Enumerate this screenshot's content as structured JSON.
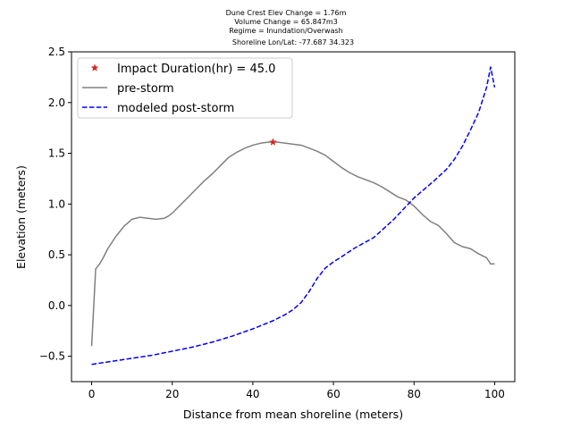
{
  "chart_data": {
    "type": "line",
    "title_lines": [
      "Dune Crest Elev Change = 1.76m",
      "Volume Change = 65.847m3",
      "Regime = Inundation/Overwash",
      "Shoreline Lon/Lat: -77.687 34.323"
    ],
    "xlabel": "Distance from mean shoreline (meters)",
    "ylabel": "Elevation (meters)",
    "xlim": [
      -5,
      105
    ],
    "ylim": [
      -0.75,
      2.5
    ],
    "xticks": [
      0,
      20,
      40,
      60,
      80,
      100
    ],
    "yticks": [
      -0.5,
      0.0,
      0.5,
      1.0,
      1.5,
      2.0,
      2.5
    ],
    "xtick_labels": [
      "0",
      "20",
      "40",
      "60",
      "80",
      "100"
    ],
    "ytick_labels": [
      "−0.5",
      "0.0",
      "0.5",
      "1.0",
      "1.5",
      "2.0",
      "2.5"
    ],
    "grid": false,
    "legend_position": "upper-left",
    "legend": [
      {
        "label": "Impact Duration(hr) = 45.0",
        "kind": "marker",
        "color": "#d62728"
      },
      {
        "label": "pre-storm",
        "kind": "line",
        "color": "#808080"
      },
      {
        "label": "modeled post-storm",
        "kind": "dashed",
        "color": "#0000ff"
      }
    ],
    "marker": {
      "x": 45.0,
      "y": 1.61,
      "color": "#d62728"
    },
    "series": [
      {
        "name": "pre-storm",
        "color": "#808080",
        "style": "solid",
        "x": [
          0,
          1,
          2,
          3,
          4,
          6,
          8,
          10,
          12,
          14,
          16,
          18,
          19,
          20,
          22,
          24,
          26,
          28,
          30,
          32,
          34,
          36,
          38,
          40,
          42,
          44,
          46,
          48,
          50,
          52,
          54,
          56,
          58,
          60,
          62,
          64,
          66,
          68,
          70,
          72,
          74,
          76,
          78,
          80,
          82,
          84,
          86,
          88,
          90,
          92,
          94,
          96,
          98,
          99,
          100
        ],
        "y": [
          -0.4,
          0.36,
          0.41,
          0.48,
          0.56,
          0.68,
          0.78,
          0.85,
          0.87,
          0.86,
          0.85,
          0.86,
          0.88,
          0.91,
          0.99,
          1.07,
          1.15,
          1.23,
          1.3,
          1.38,
          1.46,
          1.51,
          1.55,
          1.58,
          1.6,
          1.61,
          1.61,
          1.6,
          1.59,
          1.58,
          1.55,
          1.52,
          1.48,
          1.42,
          1.36,
          1.31,
          1.27,
          1.24,
          1.21,
          1.17,
          1.12,
          1.07,
          1.04,
          0.98,
          0.9,
          0.83,
          0.79,
          0.71,
          0.62,
          0.58,
          0.56,
          0.51,
          0.47,
          0.41,
          0.41
        ]
      },
      {
        "name": "modeled post-storm",
        "color": "#0000ff",
        "style": "dashed",
        "x": [
          0,
          5,
          10,
          15,
          20,
          25,
          30,
          35,
          40,
          45,
          48,
          50,
          52,
          54,
          56,
          58,
          60,
          62,
          65,
          70,
          75,
          80,
          85,
          88,
          90,
          92,
          94,
          96,
          98,
          99,
          100
        ],
        "y": [
          -0.58,
          -0.55,
          -0.52,
          -0.49,
          -0.45,
          -0.41,
          -0.36,
          -0.3,
          -0.23,
          -0.15,
          -0.09,
          -0.04,
          0.03,
          0.14,
          0.27,
          0.37,
          0.43,
          0.48,
          0.56,
          0.67,
          0.85,
          1.06,
          1.23,
          1.34,
          1.44,
          1.57,
          1.73,
          1.9,
          2.15,
          2.35,
          2.15
        ]
      }
    ]
  }
}
